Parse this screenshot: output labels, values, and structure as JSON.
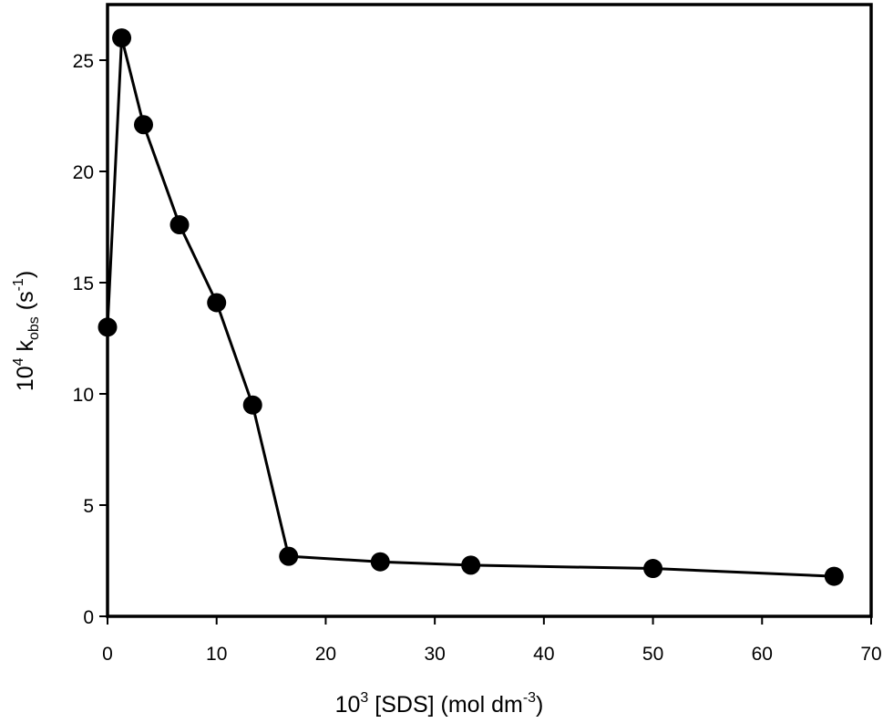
{
  "chart_data": {
    "type": "line",
    "title": "",
    "xlabel": {
      "base": "10",
      "exp": "3",
      "text": " [SDS] (mol dm",
      "unit_exp": "-3",
      "close": ")"
    },
    "ylabel": {
      "base": "10",
      "exp": "4",
      "k": " k",
      "sub": "obs",
      "unit_open": " (s",
      "unit_exp": "-1",
      "close": ")"
    },
    "xlim": [
      0,
      70
    ],
    "ylim": [
      0,
      27.5
    ],
    "x_ticks": [
      0,
      10,
      20,
      30,
      40,
      50,
      60,
      70
    ],
    "y_ticks": [
      0,
      5,
      10,
      15,
      20,
      25
    ],
    "x_tick_labels": [
      "0",
      "10",
      "20",
      "30",
      "40",
      "50",
      "60",
      "70"
    ],
    "y_tick_labels": [
      "0",
      "5",
      "10",
      "15",
      "20",
      "25"
    ],
    "grid": false,
    "marker": "filled-circle",
    "line_color": "#000000",
    "series": [
      {
        "x": [
          0,
          1.3,
          3.3,
          6.6,
          10,
          13.3,
          16.6,
          25,
          33.3,
          50,
          66.6
        ],
        "y": [
          13.0,
          26.0,
          22.1,
          17.6,
          14.1,
          9.5,
          2.7,
          2.45,
          2.3,
          2.15,
          1.8
        ]
      }
    ]
  }
}
